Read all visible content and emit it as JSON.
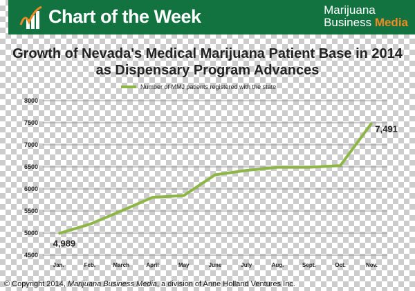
{
  "banner": {
    "title": "Chart of the Week",
    "brand_line1": "Marijuana",
    "brand_line2a": "Business",
    "brand_line2b": "Media",
    "brand_color": "#137340",
    "accent_color": "#f08a24"
  },
  "footer": {
    "prefix": "© Copyright  2014, ",
    "italic": "Marijuana Business Media",
    "suffix": ", a division of Anne Holland Ventures Inc."
  },
  "chart_data": {
    "type": "line",
    "title": "Growth of Nevada's Medical Marijuana Patient Base in 2014 as Dispensary Program Advances",
    "title_line1": "Growth of Nevada's Medical Marijuana Patient Base in 2014",
    "title_line2": "as Dispensary Program Advances",
    "categories": [
      "Jan.",
      "Feb.",
      "March",
      "April",
      "May",
      "June",
      "July",
      "Aug.",
      "Sept.",
      "Oct.",
      "Nov."
    ],
    "series": [
      {
        "name": "Number of MMJ patients registered with the state",
        "color": "#8db646",
        "values": [
          4989,
          5200,
          5500,
          5810,
          5850,
          6320,
          6420,
          6490,
          6490,
          6530,
          7491
        ]
      }
    ],
    "data_labels": [
      {
        "index": 0,
        "text": "4,989"
      },
      {
        "index": 10,
        "text": "7,491"
      }
    ],
    "ylim": [
      4500,
      8000
    ],
    "yticks": [
      "4500",
      "5000",
      "5500",
      "6000",
      "6500",
      "7000",
      "7500",
      "8000"
    ],
    "grid": true,
    "legend": "top"
  }
}
